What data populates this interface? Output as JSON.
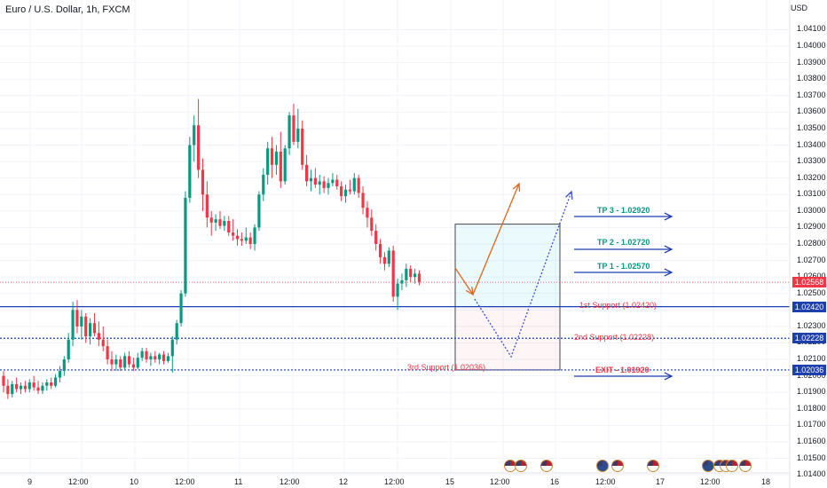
{
  "header": {
    "title": "Euro / U.S. Dollar, 1h, FXCM",
    "currency": "USD"
  },
  "price_labels": {
    "last": "1.02568",
    "support1": "1.02420",
    "support2": "1.02228",
    "support3": "1.02036"
  },
  "colors": {
    "up": "#089981",
    "down": "#f23645",
    "support_line": "#1e3fae",
    "last_price": "#f23645",
    "target_arrow": "#1e3fae",
    "path_arrow": "#e0661a",
    "path_dotted": "#3b4fd8",
    "tp_text": "#089981",
    "support_text": "#f23645"
  },
  "chart_data": {
    "type": "candlestick",
    "symbol": "Euro / U.S. Dollar, 1h, FXCM",
    "y_axis": {
      "ylim": [
        1.0132,
        1.0428
      ],
      "ticks": [
        "1.01400",
        "1.01500",
        "1.01600",
        "1.01700",
        "1.01800",
        "1.01900",
        "1.02000",
        "1.02100",
        "1.02200",
        "1.02300",
        "1.02400",
        "1.02500",
        "1.02600",
        "1.02700",
        "1.02800",
        "1.02900",
        "1.03000",
        "1.03100",
        "1.03200",
        "1.03300",
        "1.03400",
        "1.03500",
        "1.03600",
        "1.03700",
        "1.03800",
        "1.03900",
        "1.04000",
        "1.04100"
      ]
    },
    "x_axis": {
      "labels": [
        "9",
        "12:00",
        "10",
        "12:00",
        "11",
        "12:00",
        "12",
        "12:00",
        "15",
        "12:00",
        "16",
        "12:00",
        "17",
        "12:00",
        "18"
      ]
    },
    "candles": [
      {
        "o": 1.02,
        "h": 1.0203,
        "l": 1.019,
        "c": 1.0194
      },
      {
        "o": 1.0194,
        "h": 1.0198,
        "l": 1.0186,
        "c": 1.0189
      },
      {
        "o": 1.0189,
        "h": 1.0197,
        "l": 1.0187,
        "c": 1.0195
      },
      {
        "o": 1.0195,
        "h": 1.0199,
        "l": 1.019,
        "c": 1.0192
      },
      {
        "o": 1.0192,
        "h": 1.0196,
        "l": 1.0189,
        "c": 1.0194
      },
      {
        "o": 1.0194,
        "h": 1.0197,
        "l": 1.019,
        "c": 1.0192
      },
      {
        "o": 1.0192,
        "h": 1.0198,
        "l": 1.019,
        "c": 1.0196
      },
      {
        "o": 1.0196,
        "h": 1.02,
        "l": 1.0191,
        "c": 1.0193
      },
      {
        "o": 1.0193,
        "h": 1.0197,
        "l": 1.0189,
        "c": 1.0191
      },
      {
        "o": 1.0191,
        "h": 1.0196,
        "l": 1.0189,
        "c": 1.0194
      },
      {
        "o": 1.0194,
        "h": 1.0198,
        "l": 1.0191,
        "c": 1.0196
      },
      {
        "o": 1.0196,
        "h": 1.0199,
        "l": 1.0192,
        "c": 1.0194
      },
      {
        "o": 1.0194,
        "h": 1.0201,
        "l": 1.0193,
        "c": 1.0199
      },
      {
        "o": 1.0199,
        "h": 1.0206,
        "l": 1.0196,
        "c": 1.0203
      },
      {
        "o": 1.0203,
        "h": 1.0212,
        "l": 1.02,
        "c": 1.021
      },
      {
        "o": 1.021,
        "h": 1.0226,
        "l": 1.0208,
        "c": 1.0222
      },
      {
        "o": 1.0222,
        "h": 1.0245,
        "l": 1.0218,
        "c": 1.024
      },
      {
        "o": 1.024,
        "h": 1.0246,
        "l": 1.0226,
        "c": 1.023
      },
      {
        "o": 1.023,
        "h": 1.024,
        "l": 1.0222,
        "c": 1.0236
      },
      {
        "o": 1.0236,
        "h": 1.0238,
        "l": 1.022,
        "c": 1.0224
      },
      {
        "o": 1.0224,
        "h": 1.0235,
        "l": 1.0219,
        "c": 1.0232
      },
      {
        "o": 1.0232,
        "h": 1.0238,
        "l": 1.0224,
        "c": 1.0226
      },
      {
        "o": 1.0226,
        "h": 1.0233,
        "l": 1.0218,
        "c": 1.0222
      },
      {
        "o": 1.0222,
        "h": 1.023,
        "l": 1.0215,
        "c": 1.0218
      },
      {
        "o": 1.0218,
        "h": 1.0222,
        "l": 1.0207,
        "c": 1.021
      },
      {
        "o": 1.021,
        "h": 1.0215,
        "l": 1.0203,
        "c": 1.0207
      },
      {
        "o": 1.0207,
        "h": 1.0213,
        "l": 1.0203,
        "c": 1.021
      },
      {
        "o": 1.021,
        "h": 1.0212,
        "l": 1.0203,
        "c": 1.0205
      },
      {
        "o": 1.0205,
        "h": 1.0214,
        "l": 1.0204,
        "c": 1.0212
      },
      {
        "o": 1.0212,
        "h": 1.0215,
        "l": 1.0205,
        "c": 1.0207
      },
      {
        "o": 1.0207,
        "h": 1.0211,
        "l": 1.0203,
        "c": 1.0205
      },
      {
        "o": 1.0205,
        "h": 1.0214,
        "l": 1.0204,
        "c": 1.0211
      },
      {
        "o": 1.0211,
        "h": 1.0217,
        "l": 1.0209,
        "c": 1.0215
      },
      {
        "o": 1.0215,
        "h": 1.0217,
        "l": 1.0208,
        "c": 1.021
      },
      {
        "o": 1.021,
        "h": 1.0214,
        "l": 1.0206,
        "c": 1.0212
      },
      {
        "o": 1.0212,
        "h": 1.0215,
        "l": 1.0208,
        "c": 1.021
      },
      {
        "o": 1.021,
        "h": 1.0214,
        "l": 1.0207,
        "c": 1.0213
      },
      {
        "o": 1.0213,
        "h": 1.0215,
        "l": 1.0207,
        "c": 1.0209
      },
      {
        "o": 1.0209,
        "h": 1.0214,
        "l": 1.0208,
        "c": 1.0212
      },
      {
        "o": 1.0212,
        "h": 1.0224,
        "l": 1.0202,
        "c": 1.0222
      },
      {
        "o": 1.0222,
        "h": 1.0234,
        "l": 1.0219,
        "c": 1.0232
      },
      {
        "o": 1.0232,
        "h": 1.0252,
        "l": 1.023,
        "c": 1.025
      },
      {
        "o": 1.025,
        "h": 1.0312,
        "l": 1.0248,
        "c": 1.0308
      },
      {
        "o": 1.0308,
        "h": 1.0345,
        "l": 1.0305,
        "c": 1.034
      },
      {
        "o": 1.034,
        "h": 1.0358,
        "l": 1.033,
        "c": 1.0352
      },
      {
        "o": 1.0352,
        "h": 1.0368,
        "l": 1.032,
        "c": 1.0325
      },
      {
        "o": 1.0325,
        "h": 1.0332,
        "l": 1.03,
        "c": 1.031
      },
      {
        "o": 1.031,
        "h": 1.0318,
        "l": 1.029,
        "c": 1.0296
      },
      {
        "o": 1.0296,
        "h": 1.03,
        "l": 1.0285,
        "c": 1.0293
      },
      {
        "o": 1.0293,
        "h": 1.0298,
        "l": 1.0288,
        "c": 1.0295
      },
      {
        "o": 1.0295,
        "h": 1.03,
        "l": 1.0289,
        "c": 1.0291
      },
      {
        "o": 1.0291,
        "h": 1.0297,
        "l": 1.0288,
        "c": 1.0294
      },
      {
        "o": 1.0294,
        "h": 1.0297,
        "l": 1.0285,
        "c": 1.0287
      },
      {
        "o": 1.0287,
        "h": 1.0295,
        "l": 1.0282,
        "c": 1.0285
      },
      {
        "o": 1.0285,
        "h": 1.0289,
        "l": 1.0279,
        "c": 1.0283
      },
      {
        "o": 1.0283,
        "h": 1.0287,
        "l": 1.0279,
        "c": 1.0282
      },
      {
        "o": 1.0282,
        "h": 1.029,
        "l": 1.028,
        "c": 1.0284
      },
      {
        "o": 1.0284,
        "h": 1.0287,
        "l": 1.0277,
        "c": 1.028
      },
      {
        "o": 1.028,
        "h": 1.0292,
        "l": 1.0276,
        "c": 1.029
      },
      {
        "o": 1.029,
        "h": 1.0312,
        "l": 1.0288,
        "c": 1.031
      },
      {
        "o": 1.031,
        "h": 1.0326,
        "l": 1.0306,
        "c": 1.0322
      },
      {
        "o": 1.0322,
        "h": 1.0342,
        "l": 1.0316,
        "c": 1.0338
      },
      {
        "o": 1.0338,
        "h": 1.0345,
        "l": 1.032,
        "c": 1.0328
      },
      {
        "o": 1.0328,
        "h": 1.034,
        "l": 1.0322,
        "c": 1.0336
      },
      {
        "o": 1.0336,
        "h": 1.0348,
        "l": 1.0314,
        "c": 1.0318
      },
      {
        "o": 1.0318,
        "h": 1.034,
        "l": 1.0316,
        "c": 1.0338
      },
      {
        "o": 1.0338,
        "h": 1.036,
        "l": 1.0334,
        "c": 1.0358
      },
      {
        "o": 1.0358,
        "h": 1.0365,
        "l": 1.034,
        "c": 1.0342
      },
      {
        "o": 1.0342,
        "h": 1.0362,
        "l": 1.0338,
        "c": 1.035
      },
      {
        "o": 1.035,
        "h": 1.0355,
        "l": 1.0325,
        "c": 1.0328
      },
      {
        "o": 1.0328,
        "h": 1.0334,
        "l": 1.0315,
        "c": 1.0318
      },
      {
        "o": 1.0318,
        "h": 1.0325,
        "l": 1.0312,
        "c": 1.032
      },
      {
        "o": 1.032,
        "h": 1.0326,
        "l": 1.0314,
        "c": 1.0316
      },
      {
        "o": 1.0316,
        "h": 1.0322,
        "l": 1.031,
        "c": 1.0318
      },
      {
        "o": 1.0318,
        "h": 1.0321,
        "l": 1.0311,
        "c": 1.0314
      },
      {
        "o": 1.0314,
        "h": 1.032,
        "l": 1.031,
        "c": 1.0317
      },
      {
        "o": 1.0317,
        "h": 1.0323,
        "l": 1.0315,
        "c": 1.0319
      },
      {
        "o": 1.0319,
        "h": 1.0322,
        "l": 1.0313,
        "c": 1.0315
      },
      {
        "o": 1.0315,
        "h": 1.0318,
        "l": 1.0306,
        "c": 1.0309
      },
      {
        "o": 1.0309,
        "h": 1.0316,
        "l": 1.0305,
        "c": 1.0313
      },
      {
        "o": 1.0313,
        "h": 1.0319,
        "l": 1.031,
        "c": 1.0312
      },
      {
        "o": 1.0312,
        "h": 1.0323,
        "l": 1.031,
        "c": 1.032
      },
      {
        "o": 1.032,
        "h": 1.0322,
        "l": 1.0308,
        "c": 1.0311
      },
      {
        "o": 1.0311,
        "h": 1.0315,
        "l": 1.0298,
        "c": 1.0302
      },
      {
        "o": 1.0302,
        "h": 1.0306,
        "l": 1.029,
        "c": 1.0296
      },
      {
        "o": 1.0296,
        "h": 1.0301,
        "l": 1.0285,
        "c": 1.0288
      },
      {
        "o": 1.0288,
        "h": 1.0292,
        "l": 1.0276,
        "c": 1.028
      },
      {
        "o": 1.028,
        "h": 1.0283,
        "l": 1.0268,
        "c": 1.0272
      },
      {
        "o": 1.0272,
        "h": 1.0275,
        "l": 1.0264,
        "c": 1.0268
      },
      {
        "o": 1.0268,
        "h": 1.0278,
        "l": 1.0266,
        "c": 1.0276
      },
      {
        "o": 1.0276,
        "h": 1.0279,
        "l": 1.0245,
        "c": 1.0248
      },
      {
        "o": 1.0248,
        "h": 1.0259,
        "l": 1.024,
        "c": 1.0256
      },
      {
        "o": 1.0256,
        "h": 1.0262,
        "l": 1.0252,
        "c": 1.0258
      },
      {
        "o": 1.0258,
        "h": 1.0268,
        "l": 1.0254,
        "c": 1.0265
      },
      {
        "o": 1.0265,
        "h": 1.0267,
        "l": 1.0257,
        "c": 1.026
      },
      {
        "o": 1.026,
        "h": 1.0265,
        "l": 1.0256,
        "c": 1.0262
      },
      {
        "o": 1.0262,
        "h": 1.0264,
        "l": 1.0255,
        "c": 1.0257
      }
    ],
    "levels": {
      "last_price": 1.02568,
      "support_1": 1.0242,
      "support_2": 1.02228,
      "support_3": 1.02036
    },
    "annotations": {
      "tp3": "TP 3 - 1.02920",
      "tp2": "TP 2 - 1.02720",
      "tp1": "TP 1 - 1.02570",
      "support1": "1st Support (1.02420)",
      "support2": "2nd Support (1.02228)",
      "support3": "3rd Support (1.02036)",
      "exit": "EXIT - 1.01920"
    },
    "trade_box": {
      "profit_top": 1.0292,
      "entry": 1.0242,
      "stop": 1.02036
    },
    "grid": true,
    "legend": "none"
  }
}
